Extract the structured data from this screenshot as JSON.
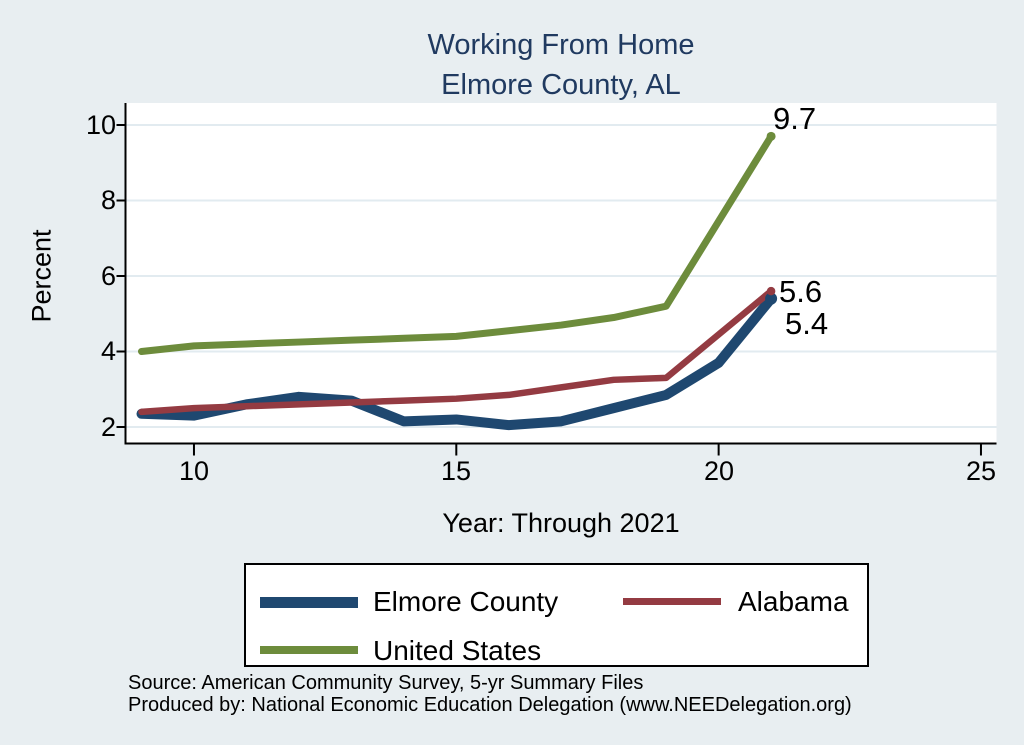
{
  "title": {
    "line1": "Working From Home",
    "line2": "Elmore County, AL"
  },
  "axis": {
    "y_label": "Percent",
    "x_label": "Year: Through 2021"
  },
  "legend": {
    "items": [
      {
        "label": "Elmore County"
      },
      {
        "label": "Alabama"
      },
      {
        "label": "United States"
      }
    ]
  },
  "notes": {
    "source": "Source: American Community Survey, 5-yr Summary Files",
    "produced_by": "Produced by: National Economic Education Delegation (www.NEEDelegation.org)"
  },
  "colors": {
    "background": "#e8eef1",
    "plot_background": "#ffffff",
    "grid": "#e2ebf0",
    "axis": "#000000",
    "title_text": "#203a60",
    "elmore_county": "#1f4870",
    "alabama": "#943b42",
    "united_states": "#6d8c3c"
  },
  "chart_data": {
    "type": "line",
    "title": "Working From Home - Elmore County, AL",
    "xlabel": "Year: Through 2021",
    "ylabel": "Percent",
    "x": [
      9,
      10,
      11,
      12,
      13,
      14,
      15,
      16,
      17,
      18,
      19,
      20,
      21
    ],
    "xticks": [
      10,
      15,
      20,
      25
    ],
    "xtick_labels": [
      "10",
      "15",
      "20",
      "25"
    ],
    "yticks": [
      2,
      4,
      6,
      8,
      10
    ],
    "ytick_labels": [
      "2",
      "4",
      "6",
      "8",
      "10"
    ],
    "xlim": [
      8.7,
      25.3
    ],
    "ylim": [
      1.1,
      10.6
    ],
    "grid": "horizontal",
    "legend_position": "bottom",
    "series": [
      {
        "name": "Elmore County",
        "color": "#1f4870",
        "line_width": 10,
        "values": [
          2.35,
          2.3,
          2.6,
          2.8,
          2.7,
          2.15,
          2.2,
          2.05,
          2.15,
          2.5,
          2.85,
          3.7,
          5.4
        ],
        "end_label": "5.4"
      },
      {
        "name": "Alabama",
        "color": "#943b42",
        "line_width": 6.5,
        "values": [
          2.4,
          2.5,
          2.55,
          2.6,
          2.65,
          2.7,
          2.75,
          2.85,
          3.05,
          3.25,
          3.3,
          4.45,
          5.6
        ],
        "end_label": "5.6"
      },
      {
        "name": "United States",
        "color": "#6d8c3c",
        "line_width": 7,
        "values": [
          4.0,
          4.15,
          4.2,
          4.25,
          4.3,
          4.35,
          4.4,
          4.55,
          4.7,
          4.9,
          5.2,
          7.45,
          9.7
        ],
        "end_label": "9.7"
      }
    ]
  }
}
